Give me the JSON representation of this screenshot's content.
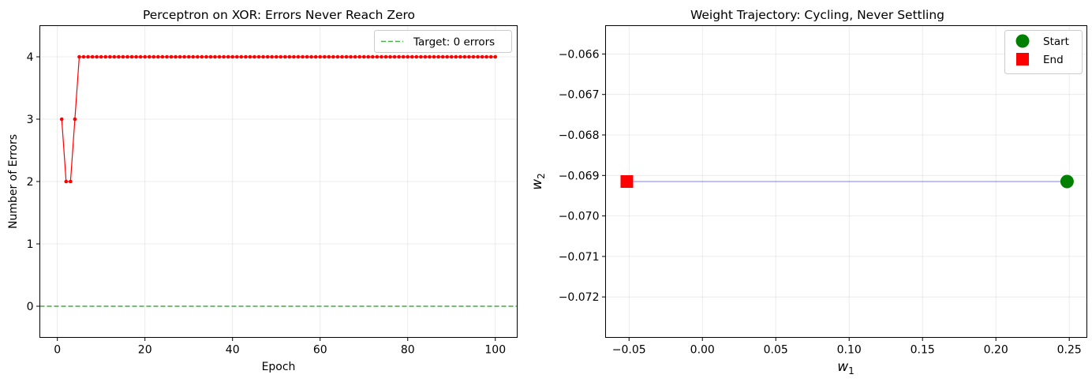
{
  "chart_data": [
    {
      "type": "line",
      "title": "Perceptron on XOR: Errors Never Reach Zero",
      "xlabel": "Epoch",
      "ylabel": "Number of Errors",
      "xlim": [
        -4,
        105
      ],
      "ylim": [
        -0.5,
        4.5
      ],
      "xticks": [
        "0",
        "20",
        "40",
        "60",
        "80",
        "100"
      ],
      "yticks": [
        "0",
        "1",
        "2",
        "3",
        "4"
      ],
      "grid": true,
      "legend": "upper right",
      "series": [
        {
          "name": "",
          "color": "#ff0000",
          "x_start": 1,
          "x_end": 100,
          "values": [
            3,
            2,
            2,
            3,
            4,
            4,
            4,
            4,
            4,
            4,
            4,
            4,
            4,
            4,
            4,
            4,
            4,
            4,
            4,
            4,
            4,
            4,
            4,
            4,
            4,
            4,
            4,
            4,
            4,
            4,
            4,
            4,
            4,
            4,
            4,
            4,
            4,
            4,
            4,
            4,
            4,
            4,
            4,
            4,
            4,
            4,
            4,
            4,
            4,
            4,
            4,
            4,
            4,
            4,
            4,
            4,
            4,
            4,
            4,
            4,
            4,
            4,
            4,
            4,
            4,
            4,
            4,
            4,
            4,
            4,
            4,
            4,
            4,
            4,
            4,
            4,
            4,
            4,
            4,
            4,
            4,
            4,
            4,
            4,
            4,
            4,
            4,
            4,
            4,
            4,
            4,
            4,
            4,
            4,
            4,
            4,
            4,
            4,
            4,
            4
          ]
        }
      ],
      "hlines": [
        {
          "name": "Target: 0 errors",
          "y": 0,
          "color": "#2ca02c",
          "style": "dashed"
        }
      ]
    },
    {
      "type": "line",
      "title": "Weight Trajectory: Cycling, Never Settling",
      "xlabel": "w1",
      "ylabel": "w2",
      "xlim": [
        -0.066,
        0.262
      ],
      "ylim": [
        -0.073,
        -0.0653
      ],
      "xticks": [
        "−0.05",
        "0.00",
        "0.05",
        "0.10",
        "0.15",
        "0.20",
        "0.25"
      ],
      "yticks": [
        "−0.066",
        "−0.067",
        "−0.068",
        "−0.069",
        "−0.070",
        "−0.071",
        "−0.072"
      ],
      "grid": true,
      "legend": "upper right",
      "trajectory": {
        "color": "#0000ff",
        "points": [
          [
            0.2485,
            -0.06915
          ],
          [
            -0.0515,
            -0.06915
          ]
        ]
      },
      "markers": [
        {
          "name": "Start",
          "x": 0.2485,
          "y": -0.06915,
          "color": "#008000",
          "shape": "circle"
        },
        {
          "name": "End",
          "x": -0.0515,
          "y": -0.06915,
          "color": "#ff0000",
          "shape": "square"
        }
      ]
    }
  ]
}
